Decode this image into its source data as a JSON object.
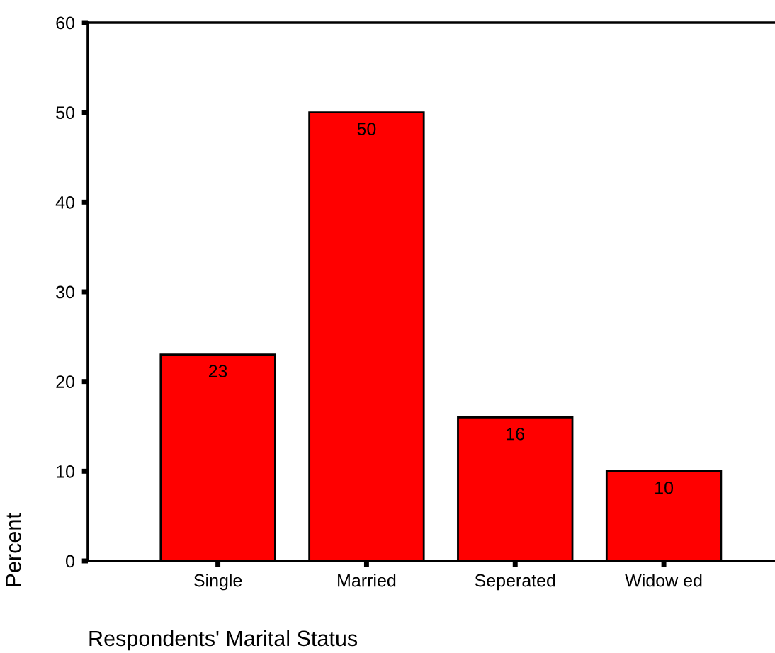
{
  "chart_data": {
    "type": "bar",
    "xlabel": "Respondents' Marital Status",
    "ylabel": "Percent",
    "categories": [
      "Single",
      "Married",
      "Seperated",
      "Widow ed"
    ],
    "values": [
      23,
      50,
      16,
      10
    ],
    "color": "#ff0000",
    "ylim": [
      0,
      60
    ],
    "yticks": [
      0,
      10,
      20,
      30,
      40,
      50,
      60
    ],
    "grid": false,
    "data_labels": true
  }
}
